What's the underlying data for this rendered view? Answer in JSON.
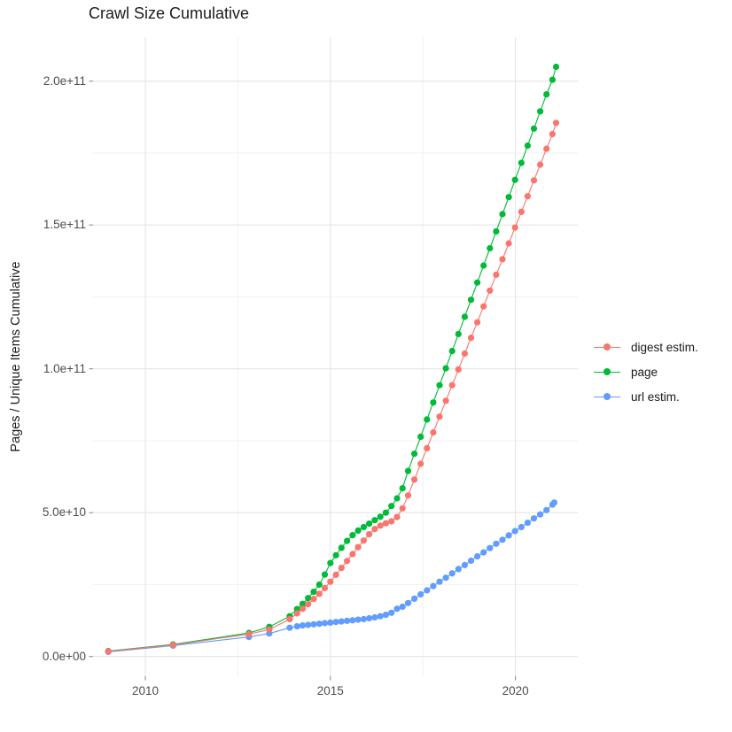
{
  "title": "Crawl Size Cumulative",
  "axes": {
    "y": {
      "title": "Pages / Unique Items Cumulative",
      "ticks": [
        {
          "label": "0.0e+00",
          "value": 0
        },
        {
          "label": "5.0e+10",
          "value": 50000000000.0
        },
        {
          "label": "1.0e+11",
          "value": 100000000000.0
        },
        {
          "label": "1.5e+11",
          "value": 150000000000.0
        },
        {
          "label": "2.0e+11",
          "value": 200000000000.0
        }
      ],
      "minor_ticks": [
        25000000000.0,
        75000000000.0,
        125000000000.0,
        175000000000.0
      ]
    },
    "x": {
      "ticks": [
        {
          "label": "2010",
          "value": 2010
        },
        {
          "label": "2015",
          "value": 2015
        },
        {
          "label": "2020",
          "value": 2020
        }
      ],
      "minor_ticks": [
        2012.5,
        2017.5
      ]
    }
  },
  "legend": {
    "position": "right",
    "items": [
      {
        "label": "digest estim.",
        "color": "#F8766D"
      },
      {
        "label": "page",
        "color": "#00BA38"
      },
      {
        "label": "url estim.",
        "color": "#619CFF"
      }
    ]
  },
  "style": {
    "grid_major_color": "#e5e5e5",
    "grid_minor_color": "#f1f1f1",
    "tick_mark_color": "#8f8f8f",
    "background": "#ffffff"
  },
  "chart_data": {
    "type": "line",
    "title": "Crawl Size Cumulative",
    "xlabel": "",
    "ylabel": "Pages / Unique Items Cumulative",
    "x_range": [
      2008.6,
      2021.7
    ],
    "y_range": [
      -7000000000.0,
      215000000000.0
    ],
    "grid": true,
    "legend_position": "right",
    "marker": "point",
    "series": [
      {
        "name": "digest estim.",
        "color": "#F8766D",
        "points": [
          [
            2009.0,
            1800000000.0
          ],
          [
            2010.75,
            4000000000.0
          ],
          [
            2012.8,
            7800000000.0
          ],
          [
            2013.35,
            9400000000.0
          ],
          [
            2013.9,
            13000000000.0
          ],
          [
            2014.1,
            15000000000.0
          ],
          [
            2014.25,
            16600000000.0
          ],
          [
            2014.4,
            18200000000.0
          ],
          [
            2014.55,
            20000000000.0
          ],
          [
            2014.7,
            21800000000.0
          ],
          [
            2014.85,
            23800000000.0
          ],
          [
            2015.0,
            26000000000.0
          ],
          [
            2015.15,
            28400000000.0
          ],
          [
            2015.3,
            30800000000.0
          ],
          [
            2015.45,
            33200000000.0
          ],
          [
            2015.6,
            35600000000.0
          ],
          [
            2015.75,
            38000000000.0
          ],
          [
            2015.9,
            40300000000.0
          ],
          [
            2016.05,
            42500000000.0
          ],
          [
            2016.2,
            44300000000.0
          ],
          [
            2016.35,
            45500000000.0
          ],
          [
            2016.5,
            46300000000.0
          ],
          [
            2016.65,
            47000000000.0
          ],
          [
            2016.8,
            48500000000.0
          ],
          [
            2016.95,
            51500000000.0
          ],
          [
            2017.1,
            56000000000.0
          ],
          [
            2017.27,
            61500000000.0
          ],
          [
            2017.44,
            67000000000.0
          ],
          [
            2017.61,
            72400000000.0
          ],
          [
            2017.78,
            77900000000.0
          ],
          [
            2017.95,
            83400000000.0
          ],
          [
            2018.12,
            88900000000.0
          ],
          [
            2018.29,
            94300000000.0
          ],
          [
            2018.46,
            99800000000.0
          ],
          [
            2018.63,
            105300000000.0
          ],
          [
            2018.8,
            110800000000.0
          ],
          [
            2018.97,
            116200000000.0
          ],
          [
            2019.14,
            121700000000.0
          ],
          [
            2019.31,
            127200000000.0
          ],
          [
            2019.48,
            132700000000.0
          ],
          [
            2019.65,
            138100000000.0
          ],
          [
            2019.82,
            143600000000.0
          ],
          [
            2019.99,
            149100000000.0
          ],
          [
            2020.16,
            154600000000.0
          ],
          [
            2020.33,
            160000000000.0
          ],
          [
            2020.5,
            165500000000.0
          ],
          [
            2020.67,
            171000000000.0
          ],
          [
            2020.84,
            176500000000.0
          ],
          [
            2021.0,
            181600000000.0
          ],
          [
            2021.1,
            185500000000.0
          ]
        ]
      },
      {
        "name": "page",
        "color": "#00BA38",
        "points": [
          [
            2009.0,
            1900000000.0
          ],
          [
            2010.75,
            4200000000.0
          ],
          [
            2012.8,
            8200000000.0
          ],
          [
            2013.35,
            10300000000.0
          ],
          [
            2013.9,
            14000000000.0
          ],
          [
            2014.1,
            16500000000.0
          ],
          [
            2014.25,
            18300000000.0
          ],
          [
            2014.4,
            20300000000.0
          ],
          [
            2014.55,
            22500000000.0
          ],
          [
            2014.7,
            25000000000.0
          ],
          [
            2014.85,
            28500000000.0
          ],
          [
            2015.0,
            32500000000.0
          ],
          [
            2015.15,
            35200000000.0
          ],
          [
            2015.3,
            37800000000.0
          ],
          [
            2015.45,
            40200000000.0
          ],
          [
            2015.6,
            42200000000.0
          ],
          [
            2015.75,
            43800000000.0
          ],
          [
            2015.9,
            45000000000.0
          ],
          [
            2016.05,
            46200000000.0
          ],
          [
            2016.2,
            47400000000.0
          ],
          [
            2016.35,
            48600000000.0
          ],
          [
            2016.5,
            50000000000.0
          ],
          [
            2016.65,
            52300000000.0
          ],
          [
            2016.8,
            55000000000.0
          ],
          [
            2016.95,
            58500000000.0
          ],
          [
            2017.1,
            64500000000.0
          ],
          [
            2017.27,
            70500000000.0
          ],
          [
            2017.44,
            76400000000.0
          ],
          [
            2017.61,
            82400000000.0
          ],
          [
            2017.78,
            88300000000.0
          ],
          [
            2017.95,
            94300000000.0
          ],
          [
            2018.12,
            100200000000.0
          ],
          [
            2018.29,
            106200000000.0
          ],
          [
            2018.46,
            112100000000.0
          ],
          [
            2018.63,
            118100000000.0
          ],
          [
            2018.8,
            124000000000.0
          ],
          [
            2018.97,
            130000000000.0
          ],
          [
            2019.14,
            135900000000.0
          ],
          [
            2019.31,
            141900000000.0
          ],
          [
            2019.48,
            147800000000.0
          ],
          [
            2019.65,
            153800000000.0
          ],
          [
            2019.82,
            159700000000.0
          ],
          [
            2019.99,
            165700000000.0
          ],
          [
            2020.16,
            171600000000.0
          ],
          [
            2020.33,
            177600000000.0
          ],
          [
            2020.5,
            183500000000.0
          ],
          [
            2020.67,
            189500000000.0
          ],
          [
            2020.84,
            195400000000.0
          ],
          [
            2021.0,
            200500000000.0
          ],
          [
            2021.1,
            205000000000.0
          ]
        ]
      },
      {
        "name": "url estim.",
        "color": "#619CFF",
        "points": [
          [
            2009.0,
            1600000000.0
          ],
          [
            2010.75,
            3800000000.0
          ],
          [
            2012.8,
            6800000000.0
          ],
          [
            2013.35,
            8000000000.0
          ],
          [
            2013.9,
            10000000000.0
          ],
          [
            2014.1,
            10500000000.0
          ],
          [
            2014.25,
            10800000000.0
          ],
          [
            2014.4,
            11000000000.0
          ],
          [
            2014.55,
            11200000000.0
          ],
          [
            2014.7,
            11400000000.0
          ],
          [
            2014.85,
            11600000000.0
          ],
          [
            2015.0,
            11800000000.0
          ],
          [
            2015.15,
            12000000000.0
          ],
          [
            2015.3,
            12200000000.0
          ],
          [
            2015.45,
            12400000000.0
          ],
          [
            2015.6,
            12600000000.0
          ],
          [
            2015.75,
            12800000000.0
          ],
          [
            2015.9,
            13000000000.0
          ],
          [
            2016.05,
            13300000000.0
          ],
          [
            2016.2,
            13600000000.0
          ],
          [
            2016.35,
            14000000000.0
          ],
          [
            2016.5,
            14500000000.0
          ],
          [
            2016.65,
            15200000000.0
          ],
          [
            2016.8,
            16600000000.0
          ],
          [
            2016.95,
            17300000000.0
          ],
          [
            2017.1,
            18600000000.0
          ],
          [
            2017.27,
            20100000000.0
          ],
          [
            2017.44,
            21600000000.0
          ],
          [
            2017.61,
            23000000000.0
          ],
          [
            2017.78,
            24500000000.0
          ],
          [
            2017.95,
            26000000000.0
          ],
          [
            2018.12,
            27400000000.0
          ],
          [
            2018.29,
            28900000000.0
          ],
          [
            2018.46,
            30400000000.0
          ],
          [
            2018.63,
            31800000000.0
          ],
          [
            2018.8,
            33300000000.0
          ],
          [
            2018.97,
            34800000000.0
          ],
          [
            2019.14,
            36200000000.0
          ],
          [
            2019.31,
            37700000000.0
          ],
          [
            2019.48,
            39200000000.0
          ],
          [
            2019.65,
            40600000000.0
          ],
          [
            2019.82,
            42100000000.0
          ],
          [
            2019.99,
            43600000000.0
          ],
          [
            2020.16,
            45000000000.0
          ],
          [
            2020.33,
            46500000000.0
          ],
          [
            2020.5,
            48000000000.0
          ],
          [
            2020.67,
            49400000000.0
          ],
          [
            2020.84,
            50900000000.0
          ],
          [
            2021.0,
            52800000000.0
          ],
          [
            2021.05,
            53500000000.0
          ]
        ]
      }
    ]
  }
}
